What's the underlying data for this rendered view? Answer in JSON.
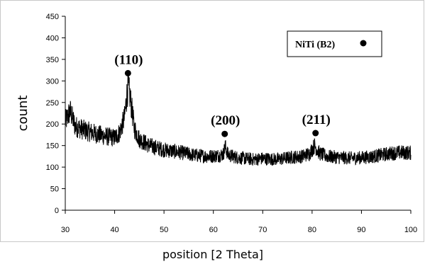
{
  "chart_data": {
    "type": "line",
    "xlabel": "position [2 Theta]",
    "ylabel": "count",
    "xlim": [
      30,
      100
    ],
    "ylim": [
      0,
      450
    ],
    "x_ticks": [
      "30",
      "40",
      "50",
      "60",
      "70",
      "80",
      "90",
      "100"
    ],
    "y_ticks": [
      "0",
      "50",
      "100",
      "150",
      "200",
      "250",
      "300",
      "350",
      "400",
      "450"
    ],
    "grid": false,
    "legend": {
      "label": "NiTi (B2)",
      "marker": "filled-circle",
      "placement": "top-right"
    },
    "series": [
      {
        "color": "#000000",
        "x": [
          30,
          31,
          32,
          34,
          36,
          38,
          40,
          41,
          42,
          42.5,
          42.8,
          43.3,
          44,
          45,
          47,
          50,
          53,
          56,
          59,
          61,
          62,
          62.4,
          63,
          65,
          68,
          70,
          73,
          76,
          78,
          79.5,
          80.5,
          81.5,
          83,
          86,
          88,
          90,
          92,
          94,
          96,
          98,
          100
        ],
        "y": [
          205,
          230,
          195,
          185,
          178,
          172,
          168,
          180,
          215,
          270,
          285,
          250,
          190,
          165,
          150,
          140,
          135,
          128,
          125,
          127,
          130,
          148,
          128,
          122,
          118,
          120,
          118,
          123,
          125,
          132,
          150,
          132,
          125,
          122,
          121,
          122,
          124,
          128,
          132,
          134,
          133
        ]
      }
    ],
    "peak_markers": [
      {
        "label": "(110)",
        "x": 42.7,
        "y": 318
      },
      {
        "label": "(200)",
        "x": 62.3,
        "y": 177
      },
      {
        "label": "(211)",
        "x": 80.7,
        "y": 179
      }
    ]
  }
}
